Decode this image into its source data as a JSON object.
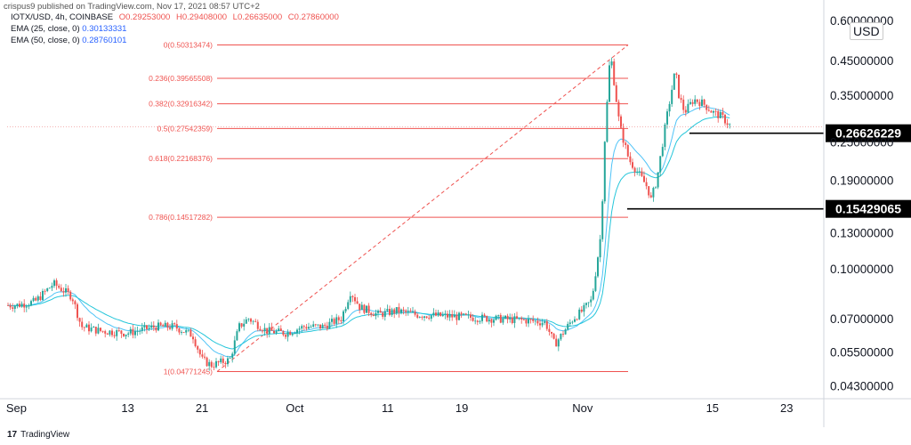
{
  "header": {
    "text": "crispus9 published on TradingView.com, Nov 17, 2021 08:57 UTC+2"
  },
  "legend": {
    "symbol": "IOTX/USD, 4h, COINBASE",
    "open": "O0.29253000",
    "high": "H0.29408000",
    "low": "L0.26635000",
    "close": "C0.27860000",
    "ema25_label": "EMA (25, close, 0)",
    "ema25_value": "0.30133331",
    "ema50_label": "EMA (50, close, 0)",
    "ema50_value": "0.28760101"
  },
  "currency": "USD",
  "brand": "TradingView",
  "colors": {
    "up": "#26a69a",
    "down": "#ef5350",
    "ema25": "#4fc3f7",
    "ema50": "#26c6da",
    "fib": "#ef5350",
    "support": "#000000"
  },
  "chart_data": {
    "type": "candlestick",
    "scale": "log",
    "ylim": [
      0.04,
      0.62
    ],
    "y_ticks": [
      "0.60000000",
      "0.45000000",
      "0.35000000",
      "0.25000000",
      "0.19000000",
      "0.13000000",
      "0.10000000",
      "0.07000000",
      "0.05500000",
      "0.04300000"
    ],
    "x_ticks": [
      "Sep",
      "13",
      "21",
      "Oct",
      "11",
      "19",
      "Nov",
      "15",
      "23"
    ],
    "fibonacci": [
      {
        "label": "0(0.50313474)",
        "price": 0.50313474
      },
      {
        "label": "0.236(0.39565508)",
        "price": 0.39565508
      },
      {
        "label": "0.382(0.32916342)",
        "price": 0.32916342
      },
      {
        "label": "0.5(0.27542359)",
        "price": 0.27542359
      },
      {
        "label": "0.618(0.22168376)",
        "price": 0.22168376
      },
      {
        "label": "0.786(0.14517282)",
        "price": 0.14517282
      },
      {
        "label": "1(0.04771245)",
        "price": 0.04771245
      }
    ],
    "horizontal_levels": [
      {
        "label": "0.26626229",
        "price": 0.26626229
      },
      {
        "label": "0.15429065",
        "price": 0.15429065
      }
    ],
    "last_price": 0.2786,
    "price_path": [
      [
        "2021-09-01",
        0.077
      ],
      [
        "2021-09-03",
        0.079
      ],
      [
        "2021-09-05",
        0.09
      ],
      [
        "2021-09-07",
        0.082
      ],
      [
        "2021-09-08",
        0.066
      ],
      [
        "2021-09-10",
        0.064
      ],
      [
        "2021-09-13",
        0.063
      ],
      [
        "2021-09-16",
        0.066
      ],
      [
        "2021-09-18",
        0.066
      ],
      [
        "2021-09-20",
        0.062
      ],
      [
        "2021-09-21",
        0.052
      ],
      [
        "2021-09-22",
        0.05
      ],
      [
        "2021-09-24",
        0.052
      ],
      [
        "2021-09-25",
        0.066
      ],
      [
        "2021-09-26",
        0.07
      ],
      [
        "2021-09-28",
        0.064
      ],
      [
        "2021-09-30",
        0.063
      ],
      [
        "2021-10-02",
        0.066
      ],
      [
        "2021-10-04",
        0.066
      ],
      [
        "2021-10-06",
        0.07
      ],
      [
        "2021-10-07",
        0.085
      ],
      [
        "2021-10-08",
        0.076
      ],
      [
        "2021-10-10",
        0.072
      ],
      [
        "2021-10-12",
        0.074
      ],
      [
        "2021-10-14",
        0.072
      ],
      [
        "2021-10-18",
        0.071
      ],
      [
        "2021-10-22",
        0.07
      ],
      [
        "2021-10-26",
        0.069
      ],
      [
        "2021-10-28",
        0.068
      ],
      [
        "2021-10-29",
        0.058
      ],
      [
        "2021-10-31",
        0.07
      ],
      [
        "2021-11-01",
        0.074
      ],
      [
        "2021-11-02",
        0.08
      ],
      [
        "2021-11-03",
        0.13
      ],
      [
        "2021-11-03",
        0.25
      ],
      [
        "2021-11-04",
        0.48
      ],
      [
        "2021-11-04",
        0.39
      ],
      [
        "2021-11-05",
        0.28
      ],
      [
        "2021-11-06",
        0.22
      ],
      [
        "2021-11-07",
        0.2
      ],
      [
        "2021-11-08",
        0.18
      ],
      [
        "2021-11-08",
        0.165
      ],
      [
        "2021-11-09",
        0.19
      ],
      [
        "2021-11-10",
        0.29
      ],
      [
        "2021-11-11",
        0.42
      ],
      [
        "2021-11-11",
        0.35
      ],
      [
        "2021-11-12",
        0.31
      ],
      [
        "2021-11-13",
        0.34
      ],
      [
        "2021-11-14",
        0.33
      ],
      [
        "2021-11-15",
        0.31
      ],
      [
        "2021-11-16",
        0.3
      ],
      [
        "2021-11-17",
        0.279
      ]
    ]
  }
}
